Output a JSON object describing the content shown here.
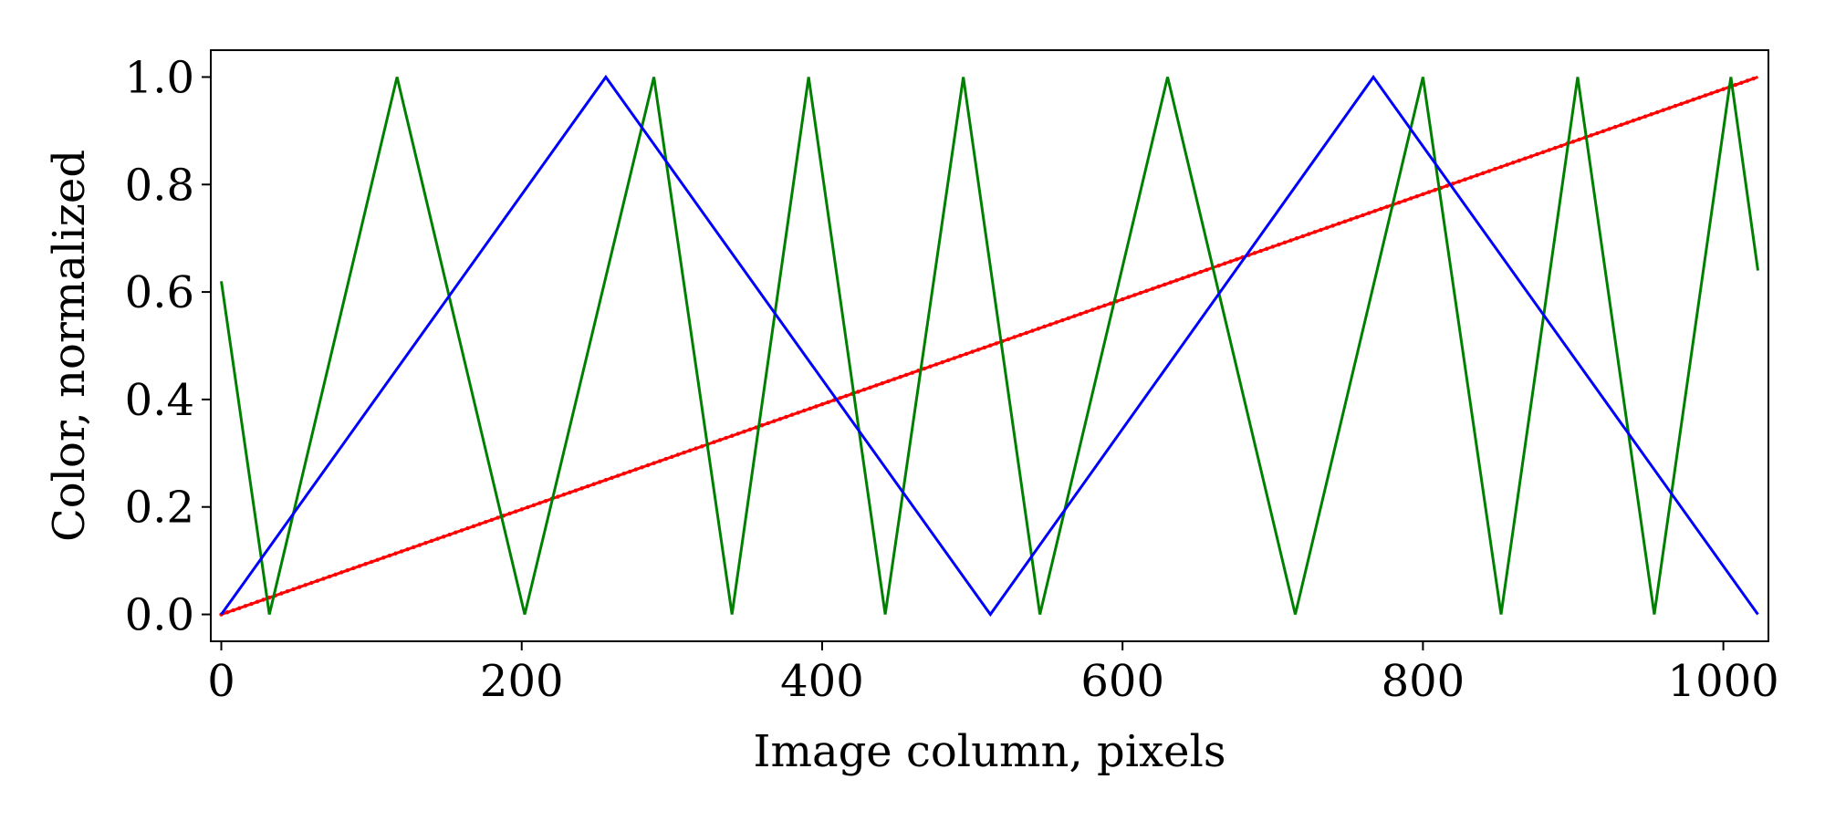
{
  "chart_data": {
    "type": "line",
    "title": "",
    "xlabel": "Image column, pixels",
    "ylabel": "Color, normalized",
    "xlim": [
      -7,
      1030
    ],
    "ylim": [
      -0.05,
      1.05
    ],
    "xticks": [
      0,
      200,
      400,
      600,
      800,
      1000
    ],
    "yticks": [
      0.0,
      0.2,
      0.4,
      0.6,
      0.8,
      1.0
    ],
    "xtick_labels": [
      "0",
      "200",
      "400",
      "600",
      "800",
      "1000"
    ],
    "ytick_labels": [
      "0.0",
      "0.2",
      "0.4",
      "0.6",
      "0.8",
      "1.0"
    ],
    "grid": false,
    "legend": "none",
    "series": [
      {
        "color": "#ff0000",
        "marker": "dot",
        "x": [
          0,
          1023
        ],
        "y": [
          0.0,
          1.0
        ]
      },
      {
        "color": "#008000",
        "x": [
          0,
          32,
          117,
          202,
          288,
          340,
          391,
          442,
          494,
          545,
          630,
          715,
          800,
          852,
          903,
          954,
          1005,
          1023
        ],
        "y": [
          0.62,
          0.0,
          1.0,
          0.0,
          1.0,
          0.0,
          1.0,
          0.0,
          1.0,
          0.0,
          1.0,
          0.0,
          1.0,
          0.0,
          1.0,
          0.0,
          1.0,
          0.64
        ]
      },
      {
        "color": "#0000ff",
        "x": [
          0,
          256,
          512,
          767,
          1023
        ],
        "y": [
          0.0,
          1.0,
          0.0,
          1.0,
          0.0
        ]
      }
    ]
  }
}
